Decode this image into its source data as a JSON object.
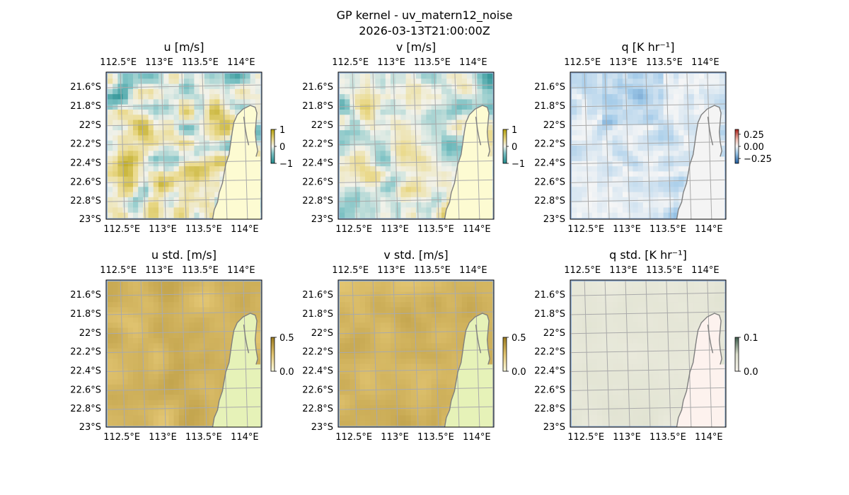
{
  "figure": {
    "title_line1": "GP kernel - uv_matern12_noise",
    "title_line2": "2026-03-13T21:00:00Z"
  },
  "chart_data": [
    {
      "type": "heatmap",
      "title": "u [m/s]",
      "x_ticks": [
        "112.5°E",
        "113°E",
        "113.5°E",
        "114°E"
      ],
      "y_ticks": [
        "21.6°S",
        "21.8°S",
        "22°S",
        "22.2°S",
        "22.4°S",
        "22.6°S",
        "22.8°S",
        "23°S"
      ],
      "xlim": [
        112.3,
        114.2
      ],
      "ylim": [
        -23.0,
        -21.45
      ],
      "colormap": "diverging teal-white-gold",
      "colorbar_ticks": [
        "1",
        "0",
        "−1"
      ],
      "colorbar_range": [
        -1,
        1
      ],
      "land_color": "#fdfbd2",
      "grid": true
    },
    {
      "type": "heatmap",
      "title": "v [m/s]",
      "x_ticks": [
        "112.5°E",
        "113°E",
        "113.5°E",
        "114°E"
      ],
      "y_ticks": [
        "21.6°S",
        "21.8°S",
        "22°S",
        "22.2°S",
        "22.4°S",
        "22.6°S",
        "22.8°S",
        "23°S"
      ],
      "xlim": [
        112.3,
        114.2
      ],
      "ylim": [
        -23.0,
        -21.45
      ],
      "colormap": "diverging teal-white-gold",
      "colorbar_ticks": [
        "1",
        "0",
        "−1"
      ],
      "colorbar_range": [
        -1,
        1
      ],
      "land_color": "#fdfbd2",
      "grid": true
    },
    {
      "type": "heatmap",
      "title": "q [K hr⁻¹]",
      "x_ticks": [
        "112.5°E",
        "113°E",
        "113.5°E",
        "114°E"
      ],
      "y_ticks": [
        "21.6°S",
        "21.8°S",
        "22°S",
        "22.2°S",
        "22.4°S",
        "22.6°S",
        "22.8°S",
        "23°S"
      ],
      "xlim": [
        112.3,
        114.2
      ],
      "ylim": [
        -23.0,
        -21.45
      ],
      "colormap": "diverging blue-white-red",
      "colorbar_ticks": [
        "0.25",
        "0.00",
        "−0.25"
      ],
      "colorbar_range": [
        -0.35,
        0.35
      ],
      "land_color": "#f4f4f4",
      "grid": true
    },
    {
      "type": "heatmap",
      "title": "u std. [m/s]",
      "x_ticks": [
        "112.5°E",
        "113°E",
        "113.5°E",
        "114°E"
      ],
      "y_ticks": [
        "21.6°S",
        "21.8°S",
        "22°S",
        "22.2°S",
        "22.4°S",
        "22.6°S",
        "22.8°S",
        "23°S"
      ],
      "xlim": [
        112.3,
        114.2
      ],
      "ylim": [
        -23.0,
        -21.45
      ],
      "colormap": "sequential gold",
      "colorbar_ticks": [
        "0.5",
        "0.0"
      ],
      "colorbar_range": [
        0,
        0.5
      ],
      "land_color": "#e6f2b8",
      "grid": true
    },
    {
      "type": "heatmap",
      "title": "v std. [m/s]",
      "x_ticks": [
        "112.5°E",
        "113°E",
        "113.5°E",
        "114°E"
      ],
      "y_ticks": [
        "21.6°S",
        "21.8°S",
        "22°S",
        "22.2°S",
        "22.4°S",
        "22.6°S",
        "22.8°S",
        "23°S"
      ],
      "xlim": [
        112.3,
        114.2
      ],
      "ylim": [
        -23.0,
        -21.45
      ],
      "colormap": "sequential gold",
      "colorbar_ticks": [
        "0.5",
        "0.0"
      ],
      "colorbar_range": [
        0,
        0.5
      ],
      "land_color": "#e6f2b8",
      "grid": true
    },
    {
      "type": "heatmap",
      "title": "q std. [K hr⁻¹]",
      "x_ticks": [
        "112.5°E",
        "113°E",
        "113.5°E",
        "114°E"
      ],
      "y_ticks": [
        "21.6°S",
        "21.8°S",
        "22°S",
        "22.2°S",
        "22.4°S",
        "22.6°S",
        "22.8°S",
        "23°S"
      ],
      "xlim": [
        112.3,
        114.2
      ],
      "ylim": [
        -23.0,
        -21.45
      ],
      "colormap": "sequential green-grey",
      "colorbar_ticks": [
        "0.1",
        "0.0"
      ],
      "colorbar_range": [
        0,
        0.1
      ],
      "land_color": "#fdf2ee",
      "grid": true
    }
  ]
}
